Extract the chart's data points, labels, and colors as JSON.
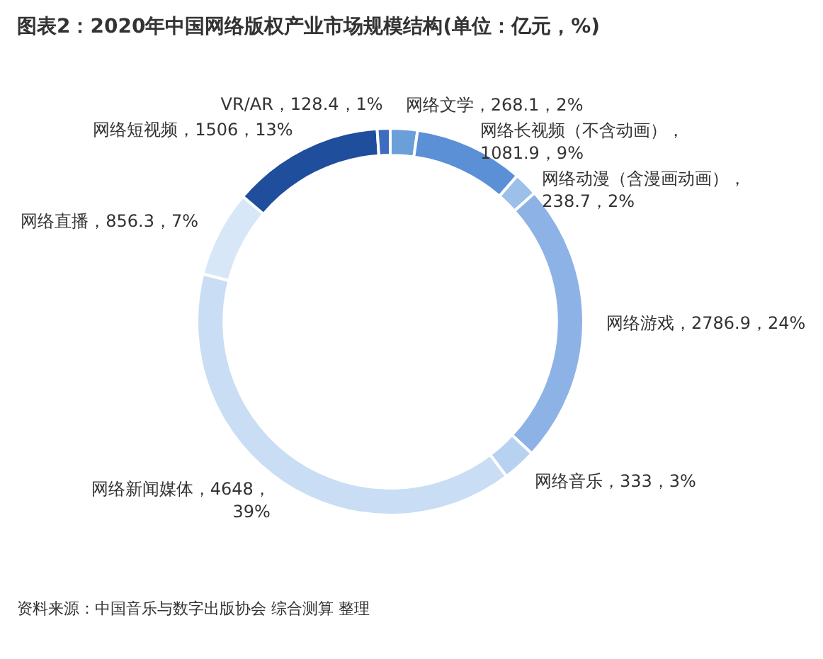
{
  "chart_data": {
    "type": "donut",
    "title": "图表2：2020年中国网络版权产业市场规模结构(单位：亿元，%)",
    "categories": [
      "网络文学",
      "网络长视频（不含动画）",
      "网络动漫（含漫画动画）",
      "网络游戏",
      "网络音乐",
      "网络新闻媒体",
      "网络直播",
      "网络短视频",
      "VR/AR"
    ],
    "values": [
      268.1,
      1081.9,
      238.7,
      2786.9,
      333,
      4648,
      856.3,
      1506,
      128.4
    ],
    "colors": [
      "#6a9fd8",
      "#5b8fd6",
      "#9cc0ea",
      "#8db2e6",
      "#b7d2f1",
      "#c9ddf5",
      "#d8e7f8",
      "#1f4e9c",
      "#3d6cc0"
    ],
    "value_labels": [
      "，268.1，2%",
      "，1081.9，9%",
      "，238.7，2%",
      "，2786.9，24%",
      "，333，3%",
      "，4648，39%",
      "，856.3，7%",
      "，1506，13%",
      "，128.4，1%"
    ],
    "annotations": [
      "资料来源：中国音乐与数字出版协会 综合测算 整理"
    ]
  }
}
